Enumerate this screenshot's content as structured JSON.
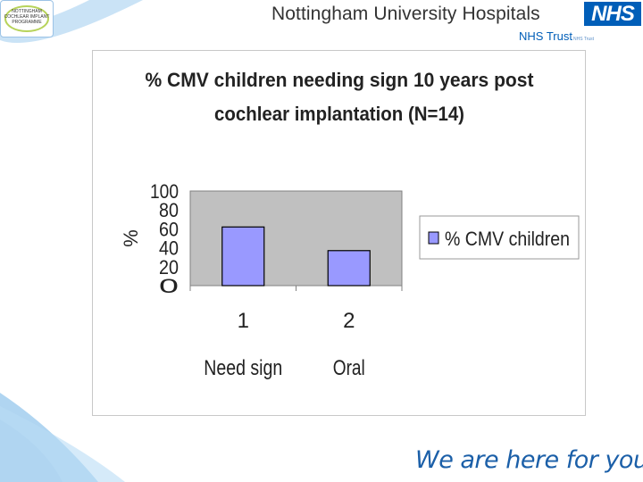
{
  "header": {
    "cochlear_logo_lines": [
      "NOTTINGHAM",
      "COCHLEAR IMPLANT",
      "PROGRAMME"
    ],
    "trust_name": "Nottingham University Hospitals",
    "nhs_logo": "NHS",
    "nhs_trust": "NHS Trust",
    "nhs_trust_small": "NHS Trust"
  },
  "footer": {
    "tagline": "We are here for you"
  },
  "colors": {
    "bar": "#9999ff",
    "plot_area": "#c0c0c0",
    "nhs_blue": "#005eb8",
    "swoosh": "#6fb3e6"
  },
  "chart_data": {
    "type": "bar",
    "title": "% CMV children needing sign 10 years post cochlear implantation (N=14)",
    "title_lines": [
      "% CMV children needing sign 10 years post",
      "cochlear implantation (N=14)"
    ],
    "ylabel": "%",
    "ylim": [
      0,
      100
    ],
    "yticks": [
      0,
      20,
      40,
      60,
      80,
      100
    ],
    "categories": [
      "1",
      "2"
    ],
    "category_names": [
      "Need sign",
      "Oral"
    ],
    "series": [
      {
        "name": "% CMV children",
        "values": [
          62,
          37
        ]
      }
    ],
    "grid": false,
    "legend": "right"
  }
}
